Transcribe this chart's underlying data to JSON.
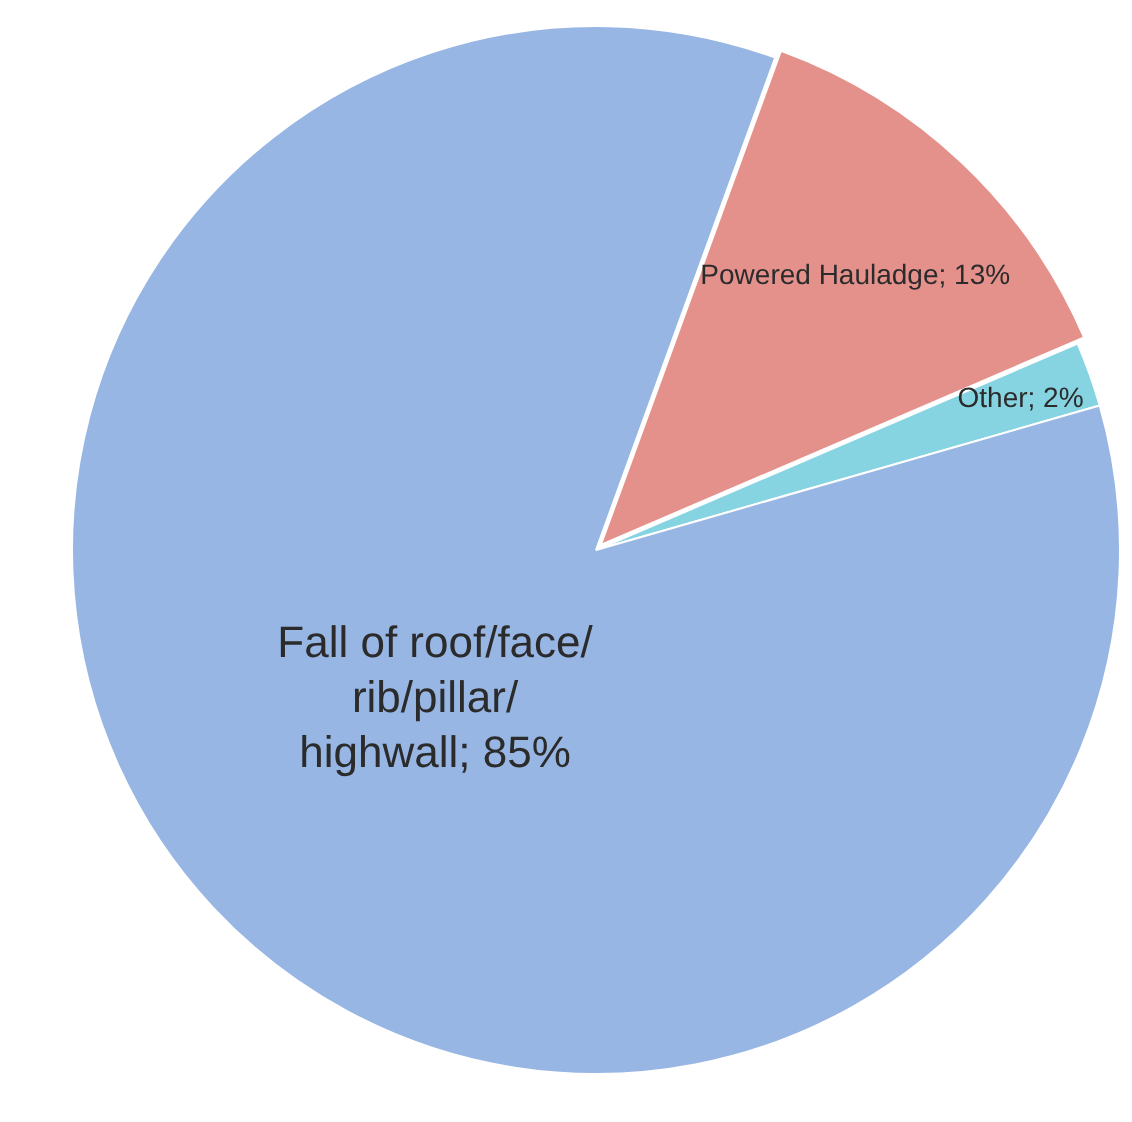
{
  "chart_data": {
    "type": "pie",
    "categories": [
      "Powered Hauladge",
      "Other",
      "Fall of roof/face/rib/pillar/highwall"
    ],
    "values": [
      13,
      2,
      85
    ],
    "colors": [
      "#e4918c",
      "#86d4e2",
      "#97b6e4"
    ],
    "value_labels": [
      "13%",
      "2%",
      "85%"
    ],
    "legend": false
  }
}
